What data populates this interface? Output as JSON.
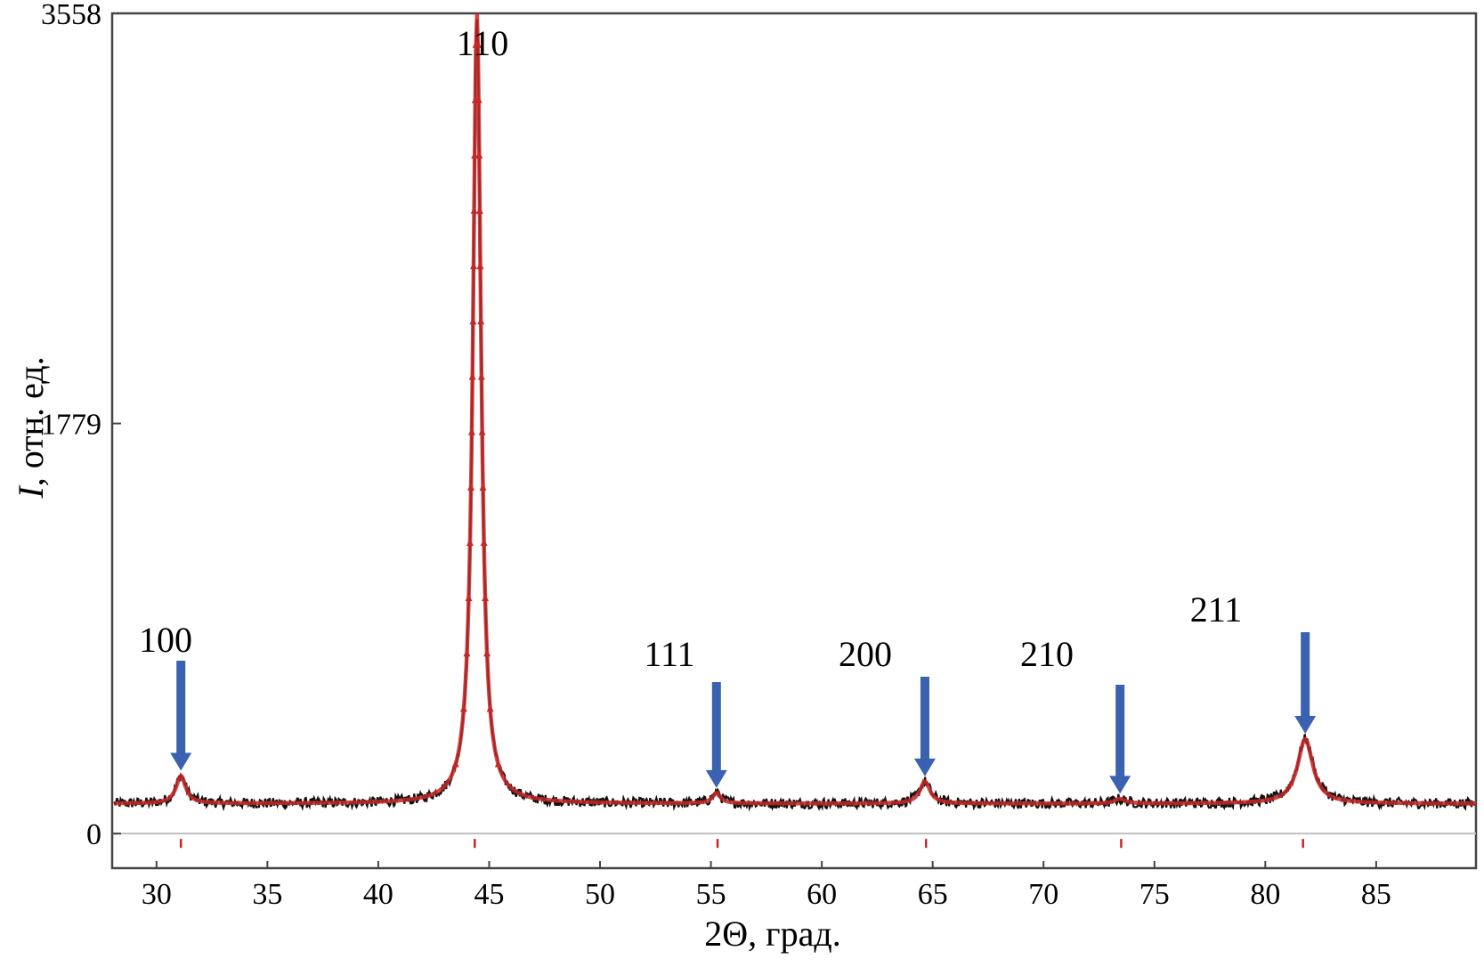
{
  "chart_data": {
    "type": "line",
    "title": "",
    "xlabel": "2Θ, град.",
    "ylabel_italic": "I",
    "ylabel_rest": ", отн. ед.",
    "xlim": [
      28,
      89.5
    ],
    "ylim": [
      -150,
      3558
    ],
    "x_ticks": [
      "30",
      "35",
      "40",
      "45",
      "50",
      "55",
      "60",
      "65",
      "70",
      "75",
      "80",
      "85"
    ],
    "y_ticks": [
      "0",
      "1779",
      "3558"
    ],
    "grid": false,
    "colors": {
      "observed": "#111111",
      "calculated": "#c62828",
      "arrow": "#3a62b0",
      "reference_line": "#c0c0c0",
      "axis": "#444444"
    },
    "baseline": 130,
    "peaks": [
      {
        "label": "100",
        "x": 31.1,
        "y": 250
      },
      {
        "label": "110",
        "x": 44.45,
        "y": 3558
      },
      {
        "label": "111",
        "x": 55.25,
        "y": 175
      },
      {
        "label": "200",
        "x": 64.65,
        "y": 225
      },
      {
        "label": "210",
        "x": 73.45,
        "y": 150
      },
      {
        "label": "211",
        "x": 81.8,
        "y": 410
      }
    ],
    "reference_marks_x": [
      31.1,
      44.35,
      55.3,
      64.7,
      73.5,
      81.7
    ]
  }
}
